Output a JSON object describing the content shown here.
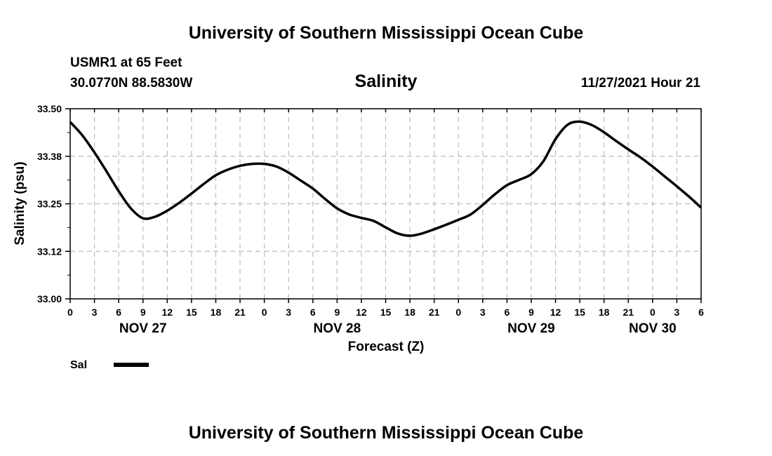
{
  "header": {
    "title": "University of Southern Mississippi Ocean Cube",
    "station": "USMR1 at 65 Feet",
    "coords": "30.0770N  88.5830W",
    "variable": "Salinity",
    "datetime": "11/27/2021 Hour 21"
  },
  "footer": {
    "title": "University of Southern Mississippi Ocean Cube"
  },
  "legend": {
    "label": "Sal"
  },
  "chart_data": {
    "type": "line",
    "title": "Salinity",
    "xlabel": "Forecast (Z)",
    "ylabel": "Salinity (psu)",
    "xlim": [
      0,
      78
    ],
    "ylim": [
      33.0,
      33.5
    ],
    "x_tick_labels": [
      "0",
      "3",
      "6",
      "9",
      "12",
      "15",
      "18",
      "21",
      "0",
      "3",
      "6",
      "9",
      "12",
      "15",
      "18",
      "21",
      "0",
      "3",
      "6",
      "9",
      "12",
      "15",
      "18",
      "21",
      "0",
      "3",
      "6"
    ],
    "y_tick_labels": [
      "33.00",
      "33.12",
      "33.25",
      "33.38",
      "33.50"
    ],
    "date_labels": [
      {
        "hour": 9,
        "label": "NOV 27"
      },
      {
        "hour": 33,
        "label": "NOV 28"
      },
      {
        "hour": 57,
        "label": "NOV 29"
      },
      {
        "hour": 72,
        "label": "NOV 30"
      }
    ],
    "grid": true,
    "series": [
      {
        "name": "Sal",
        "color": "#000000",
        "x": [
          0,
          1.5,
          3,
          4.5,
          6,
          7.5,
          9,
          10.5,
          12,
          13.5,
          15,
          16.5,
          18,
          19.5,
          21,
          22.5,
          24,
          25.5,
          27,
          28.5,
          30,
          31.5,
          33,
          34.5,
          36,
          37.5,
          39,
          40.5,
          42,
          43.5,
          45,
          46.5,
          48,
          49.5,
          51,
          52.5,
          54,
          55.5,
          57,
          58.5,
          60,
          61.5,
          63,
          64.5,
          66,
          67.5,
          69,
          70.5,
          72,
          73.5,
          75,
          76.5,
          78
        ],
        "y": [
          33.465,
          33.43,
          33.385,
          33.335,
          33.283,
          33.238,
          33.212,
          33.216,
          33.232,
          33.253,
          33.277,
          33.302,
          33.325,
          33.34,
          33.35,
          33.355,
          33.355,
          33.348,
          33.332,
          33.311,
          33.29,
          33.263,
          33.238,
          33.222,
          33.213,
          33.205,
          33.188,
          33.172,
          33.166,
          33.172,
          33.183,
          33.195,
          33.208,
          33.222,
          33.247,
          33.275,
          33.299,
          33.313,
          33.328,
          33.362,
          33.42,
          33.458,
          33.466,
          33.457,
          33.438,
          33.415,
          33.393,
          33.372,
          33.348,
          33.322,
          33.296,
          33.269,
          33.24
        ]
      }
    ]
  }
}
